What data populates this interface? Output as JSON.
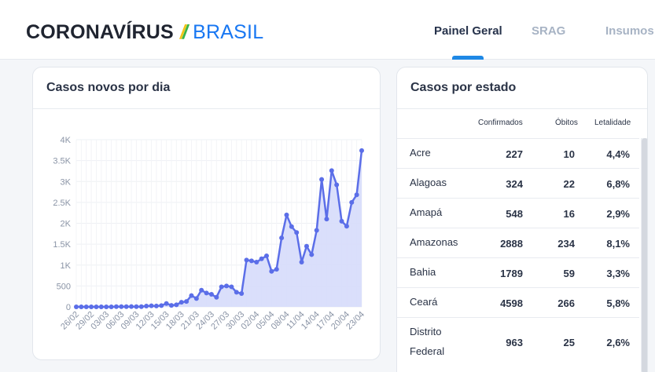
{
  "header": {
    "logo": {
      "main": "CORONAVÍRUS",
      "slash": "/",
      "country": "BRASIL"
    },
    "nav": [
      {
        "label": "Painel Geral",
        "active": true
      },
      {
        "label": "SRAG",
        "active": false
      },
      {
        "label": "Insumos",
        "active": false
      }
    ]
  },
  "chart_card": {
    "title": "Casos novos por dia"
  },
  "chart_data": {
    "type": "area",
    "title": "Casos novos por dia",
    "xlabel": "",
    "ylabel": "",
    "ylim": [
      0,
      4000
    ],
    "yticks": [
      0,
      500,
      1000,
      1500,
      2000,
      2500,
      3000,
      3500,
      4000
    ],
    "ytick_labels": [
      "0",
      "500",
      "1K",
      "1.5K",
      "2K",
      "2.5K",
      "3K",
      "3.5K",
      "4K"
    ],
    "xtick_labels": [
      "26/02",
      "29/02",
      "03/03",
      "06/03",
      "09/03",
      "12/03",
      "15/03",
      "18/03",
      "21/03",
      "24/03",
      "27/03",
      "30/03",
      "02/04",
      "05/04",
      "08/04",
      "11/04",
      "14/04",
      "17/04",
      "20/04",
      "23/04"
    ],
    "grid": true,
    "colors": {
      "line": "#5b6ee8",
      "fill": "#d6dbfb"
    },
    "series": [
      {
        "x": [
          "26/02",
          "27/02",
          "28/02",
          "29/02",
          "01/03",
          "02/03",
          "03/03",
          "04/03",
          "05/03",
          "06/03",
          "07/03",
          "08/03",
          "09/03",
          "10/03",
          "11/03",
          "12/03",
          "13/03",
          "14/03",
          "15/03",
          "16/03",
          "17/03",
          "18/03",
          "19/03",
          "20/03",
          "21/03",
          "22/03",
          "23/03",
          "24/03",
          "25/03",
          "26/03",
          "27/03",
          "28/03",
          "29/03",
          "30/03",
          "31/03",
          "01/04",
          "02/04",
          "03/04",
          "04/04",
          "05/04",
          "06/04",
          "07/04",
          "08/04",
          "09/04",
          "10/04",
          "11/04",
          "12/04",
          "13/04",
          "14/04",
          "15/04",
          "16/04",
          "17/04",
          "18/04",
          "19/04",
          "20/04",
          "21/04",
          "22/04",
          "23/04"
        ],
        "values": [
          1,
          0,
          0,
          1,
          0,
          0,
          0,
          0,
          5,
          5,
          5,
          6,
          5,
          5,
          18,
          25,
          20,
          30,
          80,
          35,
          50,
          110,
          130,
          270,
          200,
          400,
          330,
          300,
          230,
          480,
          500,
          480,
          350,
          320,
          1120,
          1100,
          1070,
          1150,
          1220,
          850,
          900,
          1650,
          2200,
          1920,
          1780,
          1070,
          1450,
          1250,
          1830,
          3050,
          2100,
          3260,
          2920,
          2050,
          1930,
          2500,
          2680,
          3740
        ]
      }
    ]
  },
  "table_card": {
    "title": "Casos por estado",
    "columns": [
      "Confirmados",
      "Óbitos",
      "Letalidade"
    ],
    "rows": [
      {
        "state": "Acre",
        "confirmed": "227",
        "deaths": "10",
        "lethality": "4,4%"
      },
      {
        "state": "Alagoas",
        "confirmed": "324",
        "deaths": "22",
        "lethality": "6,8%"
      },
      {
        "state": "Amapá",
        "confirmed": "548",
        "deaths": "16",
        "lethality": "2,9%"
      },
      {
        "state": "Amazonas",
        "confirmed": "2888",
        "deaths": "234",
        "lethality": "8,1%"
      },
      {
        "state": "Bahia",
        "confirmed": "1789",
        "deaths": "59",
        "lethality": "3,3%"
      },
      {
        "state": "Ceará",
        "confirmed": "4598",
        "deaths": "266",
        "lethality": "5,8%"
      },
      {
        "state": "Distrito Federal",
        "state_line1": "Distrito",
        "state_line2": "Federal",
        "confirmed": "963",
        "deaths": "25",
        "lethality": "2,6%"
      }
    ]
  }
}
